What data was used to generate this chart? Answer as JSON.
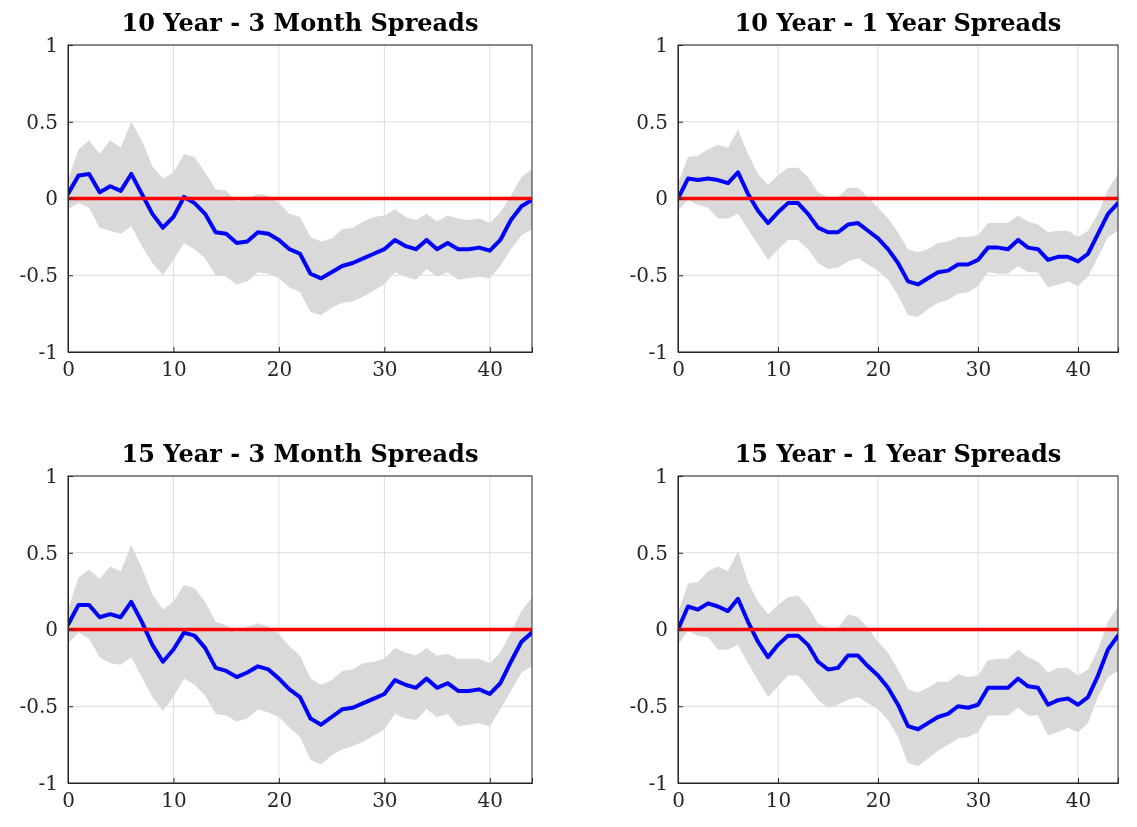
{
  "chart_data": [
    {
      "type": "line",
      "title": "10 Year - 3 Month Spreads",
      "x": [
        0,
        1,
        2,
        3,
        4,
        5,
        6,
        7,
        8,
        9,
        10,
        11,
        12,
        13,
        14,
        15,
        16,
        17,
        18,
        19,
        20,
        21,
        22,
        23,
        24,
        25,
        26,
        27,
        28,
        29,
        30,
        31,
        32,
        33,
        34,
        35,
        36,
        37,
        38,
        39,
        40,
        41,
        42,
        43,
        44
      ],
      "xlim": [
        0,
        44
      ],
      "ylim": [
        -1,
        1
      ],
      "xticks": [
        0,
        10,
        20,
        30,
        40
      ],
      "yticks": [
        -1,
        -0.5,
        0,
        0.5,
        1
      ],
      "grid": true,
      "ref_lines": [
        {
          "axis": "y",
          "value": 0,
          "color": "#ff0000"
        }
      ],
      "series": [
        {
          "color": "#0000ff",
          "values": [
            0.03,
            0.15,
            0.16,
            0.04,
            0.08,
            0.05,
            0.16,
            0.03,
            -0.1,
            -0.19,
            -0.12,
            0.01,
            -0.03,
            -0.1,
            -0.22,
            -0.23,
            -0.29,
            -0.28,
            -0.22,
            -0.23,
            -0.27,
            -0.33,
            -0.36,
            -0.49,
            -0.52,
            -0.48,
            -0.44,
            -0.42,
            -0.39,
            -0.36,
            -0.33,
            -0.27,
            -0.31,
            -0.33,
            -0.27,
            -0.33,
            -0.29,
            -0.33,
            -0.33,
            -0.32,
            -0.34,
            -0.27,
            -0.14,
            -0.05,
            -0.01
          ],
          "upper": [
            0.12,
            0.32,
            0.38,
            0.29,
            0.38,
            0.33,
            0.5,
            0.38,
            0.21,
            0.13,
            0.17,
            0.29,
            0.27,
            0.17,
            0.06,
            0.05,
            -0.02,
            0,
            0.03,
            0.02,
            -0.03,
            -0.1,
            -0.12,
            -0.25,
            -0.28,
            -0.26,
            -0.2,
            -0.19,
            -0.15,
            -0.12,
            -0.11,
            -0.07,
            -0.12,
            -0.14,
            -0.1,
            -0.15,
            -0.11,
            -0.13,
            -0.14,
            -0.13,
            -0.16,
            -0.09,
            0.02,
            0.14,
            0.19
          ],
          "lower": [
            -0.07,
            -0.03,
            -0.06,
            -0.19,
            -0.21,
            -0.23,
            -0.18,
            -0.31,
            -0.42,
            -0.5,
            -0.4,
            -0.29,
            -0.33,
            -0.39,
            -0.5,
            -0.51,
            -0.56,
            -0.54,
            -0.48,
            -0.49,
            -0.52,
            -0.58,
            -0.61,
            -0.74,
            -0.76,
            -0.71,
            -0.68,
            -0.67,
            -0.64,
            -0.6,
            -0.56,
            -0.48,
            -0.51,
            -0.53,
            -0.46,
            -0.51,
            -0.48,
            -0.53,
            -0.52,
            -0.51,
            -0.52,
            -0.44,
            -0.33,
            -0.24,
            -0.2
          ]
        }
      ]
    },
    {
      "type": "line",
      "title": "10 Year - 1 Year Spreads",
      "x": [
        0,
        1,
        2,
        3,
        4,
        5,
        6,
        7,
        8,
        9,
        10,
        11,
        12,
        13,
        14,
        15,
        16,
        17,
        18,
        19,
        20,
        21,
        22,
        23,
        24,
        25,
        26,
        27,
        28,
        29,
        30,
        31,
        32,
        33,
        34,
        35,
        36,
        37,
        38,
        39,
        40,
        41,
        42,
        43,
        44
      ],
      "xlim": [
        0,
        44
      ],
      "ylim": [
        -1,
        1
      ],
      "xticks": [
        0,
        10,
        20,
        30,
        40
      ],
      "yticks": [
        -1,
        -0.5,
        0,
        0.5,
        1
      ],
      "grid": true,
      "ref_lines": [
        {
          "axis": "y",
          "value": 0,
          "color": "#ff0000"
        }
      ],
      "series": [
        {
          "color": "#0000ff",
          "values": [
            0,
            0.13,
            0.12,
            0.13,
            0.12,
            0.1,
            0.17,
            0.03,
            -0.08,
            -0.16,
            -0.09,
            -0.03,
            -0.03,
            -0.1,
            -0.19,
            -0.22,
            -0.22,
            -0.17,
            -0.16,
            -0.21,
            -0.26,
            -0.33,
            -0.42,
            -0.54,
            -0.56,
            -0.52,
            -0.48,
            -0.47,
            -0.43,
            -0.43,
            -0.4,
            -0.32,
            -0.32,
            -0.33,
            -0.27,
            -0.32,
            -0.33,
            -0.4,
            -0.38,
            -0.38,
            -0.41,
            -0.36,
            -0.23,
            -0.1,
            -0.03
          ],
          "upper": [
            0.1,
            0.27,
            0.28,
            0.32,
            0.35,
            0.33,
            0.45,
            0.29,
            0.16,
            0.09,
            0.15,
            0.2,
            0.2,
            0.14,
            0.04,
            0.01,
            0.01,
            0.07,
            0.07,
            0.01,
            -0.06,
            -0.13,
            -0.22,
            -0.33,
            -0.35,
            -0.33,
            -0.29,
            -0.28,
            -0.25,
            -0.25,
            -0.24,
            -0.16,
            -0.16,
            -0.16,
            -0.11,
            -0.15,
            -0.17,
            -0.22,
            -0.21,
            -0.21,
            -0.25,
            -0.21,
            -0.1,
            0.06,
            0.16
          ],
          "lower": [
            -0.08,
            -0.01,
            -0.04,
            -0.06,
            -0.13,
            -0.13,
            -0.1,
            -0.2,
            -0.3,
            -0.4,
            -0.33,
            -0.27,
            -0.27,
            -0.33,
            -0.42,
            -0.46,
            -0.45,
            -0.41,
            -0.39,
            -0.43,
            -0.47,
            -0.53,
            -0.63,
            -0.76,
            -0.77,
            -0.72,
            -0.68,
            -0.66,
            -0.62,
            -0.61,
            -0.57,
            -0.48,
            -0.49,
            -0.49,
            -0.44,
            -0.48,
            -0.48,
            -0.58,
            -0.56,
            -0.54,
            -0.57,
            -0.51,
            -0.38,
            -0.25,
            -0.21
          ]
        }
      ]
    },
    {
      "type": "line",
      "title": "15 Year - 3 Month Spreads",
      "x": [
        0,
        1,
        2,
        3,
        4,
        5,
        6,
        7,
        8,
        9,
        10,
        11,
        12,
        13,
        14,
        15,
        16,
        17,
        18,
        19,
        20,
        21,
        22,
        23,
        24,
        25,
        26,
        27,
        28,
        29,
        30,
        31,
        32,
        33,
        34,
        35,
        36,
        37,
        38,
        39,
        40,
        41,
        42,
        43,
        44
      ],
      "xlim": [
        0,
        44
      ],
      "ylim": [
        -1,
        1
      ],
      "xticks": [
        0,
        10,
        20,
        30,
        40
      ],
      "yticks": [
        -1,
        -0.5,
        0,
        0.5,
        1
      ],
      "grid": true,
      "ref_lines": [
        {
          "axis": "y",
          "value": 0,
          "color": "#ff0000"
        }
      ],
      "series": [
        {
          "color": "#0000ff",
          "values": [
            0.03,
            0.16,
            0.16,
            0.08,
            0.1,
            0.08,
            0.18,
            0.05,
            -0.1,
            -0.21,
            -0.13,
            -0.02,
            -0.04,
            -0.12,
            -0.25,
            -0.27,
            -0.31,
            -0.28,
            -0.24,
            -0.26,
            -0.32,
            -0.39,
            -0.44,
            -0.58,
            -0.62,
            -0.57,
            -0.52,
            -0.51,
            -0.48,
            -0.45,
            -0.42,
            -0.33,
            -0.36,
            -0.38,
            -0.32,
            -0.38,
            -0.35,
            -0.4,
            -0.4,
            -0.39,
            -0.42,
            -0.35,
            -0.21,
            -0.08,
            -0.02
          ],
          "upper": [
            0.13,
            0.34,
            0.39,
            0.33,
            0.41,
            0.38,
            0.55,
            0.4,
            0.23,
            0.13,
            0.18,
            0.29,
            0.27,
            0.18,
            0.05,
            0.03,
            -0.02,
            0.02,
            0.04,
            0.02,
            -0.03,
            -0.11,
            -0.17,
            -0.32,
            -0.36,
            -0.33,
            -0.27,
            -0.26,
            -0.22,
            -0.21,
            -0.19,
            -0.12,
            -0.15,
            -0.17,
            -0.12,
            -0.17,
            -0.16,
            -0.19,
            -0.19,
            -0.19,
            -0.22,
            -0.15,
            -0.02,
            0.12,
            0.21
          ],
          "lower": [
            -0.09,
            -0.02,
            -0.06,
            -0.18,
            -0.22,
            -0.23,
            -0.18,
            -0.31,
            -0.44,
            -0.53,
            -0.44,
            -0.32,
            -0.36,
            -0.43,
            -0.55,
            -0.56,
            -0.6,
            -0.58,
            -0.52,
            -0.54,
            -0.57,
            -0.64,
            -0.7,
            -0.85,
            -0.88,
            -0.82,
            -0.78,
            -0.76,
            -0.73,
            -0.69,
            -0.65,
            -0.55,
            -0.58,
            -0.59,
            -0.52,
            -0.57,
            -0.55,
            -0.63,
            -0.62,
            -0.61,
            -0.63,
            -0.52,
            -0.4,
            -0.28,
            -0.24
          ]
        }
      ]
    },
    {
      "type": "line",
      "title": "15 Year - 1 Year Spreads",
      "x": [
        0,
        1,
        2,
        3,
        4,
        5,
        6,
        7,
        8,
        9,
        10,
        11,
        12,
        13,
        14,
        15,
        16,
        17,
        18,
        19,
        20,
        21,
        22,
        23,
        24,
        25,
        26,
        27,
        28,
        29,
        30,
        31,
        32,
        33,
        34,
        35,
        36,
        37,
        38,
        39,
        40,
        41,
        42,
        43,
        44
      ],
      "xlim": [
        0,
        44
      ],
      "ylim": [
        -1,
        1
      ],
      "xticks": [
        0,
        10,
        20,
        30,
        40
      ],
      "yticks": [
        -1,
        -0.5,
        0,
        0.5,
        1
      ],
      "grid": true,
      "ref_lines": [
        {
          "axis": "y",
          "value": 0,
          "color": "#ff0000"
        }
      ],
      "series": [
        {
          "color": "#0000ff",
          "values": [
            0,
            0.15,
            0.13,
            0.17,
            0.15,
            0.12,
            0.2,
            0.05,
            -0.08,
            -0.18,
            -0.1,
            -0.04,
            -0.04,
            -0.1,
            -0.21,
            -0.26,
            -0.25,
            -0.17,
            -0.17,
            -0.24,
            -0.3,
            -0.38,
            -0.49,
            -0.63,
            -0.65,
            -0.61,
            -0.57,
            -0.55,
            -0.5,
            -0.51,
            -0.49,
            -0.38,
            -0.38,
            -0.38,
            -0.32,
            -0.37,
            -0.38,
            -0.49,
            -0.46,
            -0.45,
            -0.49,
            -0.44,
            -0.3,
            -0.13,
            -0.04
          ],
          "upper": [
            0.11,
            0.3,
            0.31,
            0.38,
            0.41,
            0.38,
            0.51,
            0.31,
            0.18,
            0.1,
            0.16,
            0.21,
            0.22,
            0.15,
            0.04,
            0.01,
            0.01,
            0.1,
            0.08,
            0.01,
            -0.08,
            -0.15,
            -0.26,
            -0.39,
            -0.41,
            -0.38,
            -0.34,
            -0.34,
            -0.29,
            -0.31,
            -0.3,
            -0.2,
            -0.19,
            -0.19,
            -0.13,
            -0.18,
            -0.21,
            -0.28,
            -0.25,
            -0.25,
            -0.3,
            -0.26,
            -0.13,
            0.05,
            0.15
          ],
          "lower": [
            -0.1,
            -0.01,
            -0.04,
            -0.05,
            -0.13,
            -0.13,
            -0.1,
            -0.22,
            -0.33,
            -0.44,
            -0.37,
            -0.3,
            -0.3,
            -0.37,
            -0.46,
            -0.51,
            -0.49,
            -0.46,
            -0.44,
            -0.48,
            -0.52,
            -0.59,
            -0.7,
            -0.87,
            -0.89,
            -0.84,
            -0.79,
            -0.75,
            -0.71,
            -0.7,
            -0.67,
            -0.56,
            -0.56,
            -0.56,
            -0.51,
            -0.56,
            -0.56,
            -0.69,
            -0.67,
            -0.64,
            -0.67,
            -0.61,
            -0.44,
            -0.31,
            -0.27
          ]
        }
      ]
    }
  ]
}
